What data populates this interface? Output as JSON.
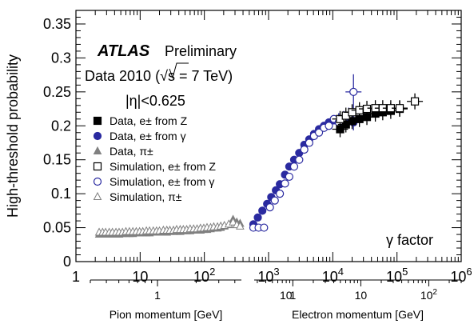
{
  "chart_data": {
    "type": "scatter",
    "ylabel": "High-threshold probability",
    "ylim": [
      0,
      0.37
    ],
    "yticks": [
      "0",
      "0.05",
      "0.1",
      "0.15",
      "0.2",
      "0.25",
      "0.3",
      "0.35"
    ],
    "xscale": "log",
    "xlim": [
      1,
      1000000
    ],
    "xticks": [
      {
        "v": 1,
        "b": "1",
        "e": ""
      },
      {
        "v": 10,
        "b": "10",
        "e": ""
      },
      {
        "v": 100,
        "b": "10",
        "e": "2"
      },
      {
        "v": 1000,
        "b": "10",
        "e": "3"
      },
      {
        "v": 10000,
        "b": "10",
        "e": "4"
      },
      {
        "v": 100000,
        "b": "10",
        "e": "5"
      },
      {
        "v": 1000000,
        "b": "10",
        "e": "6"
      }
    ],
    "annotation": "γ factor",
    "atlas_label": "ATLAS",
    "preliminary_label": "Preliminary",
    "data_label_pre": "Data 2010 (",
    "sqrt_label": "√s",
    "data_label_post": " = 7 TeV)",
    "eta_label": "|η|<0.625",
    "legend_position": "left",
    "legend": [
      {
        "marker": "square-filled",
        "label": "Data, e± from Z"
      },
      {
        "marker": "circle-filled",
        "label": "Data, e± from γ"
      },
      {
        "marker": "triangle-filled",
        "label": "Data, π±"
      },
      {
        "marker": "square-open",
        "label": "Simulation, e± from Z"
      },
      {
        "marker": "circle-open",
        "label": "Simulation, e± from γ"
      },
      {
        "marker": "triangle-open",
        "label": "Simulation, π±"
      }
    ],
    "secondary_axes": [
      {
        "title": "Pion momentum [GeV]",
        "xlim": [
          0.3,
          4.5
        ],
        "ticks": [
          {
            "v": 1,
            "label": "1"
          },
          {
            "v": 10,
            "label": "10"
          }
        ]
      },
      {
        "title": "Electron momentum [GeV]",
        "xlim": [
          0.27,
          300
        ],
        "ticks": [
          {
            "v": 1,
            "label": "1"
          },
          {
            "v": 10,
            "label": "10"
          },
          {
            "v": 100,
            "label": "10",
            "sup": "2"
          }
        ]
      }
    ],
    "series": [
      {
        "marker": "triangle-filled",
        "color": "#808080",
        "points": [
          [
            2.3,
            0.04
          ],
          [
            2.6,
            0.04
          ],
          [
            2.9,
            0.04
          ],
          [
            3.3,
            0.041
          ],
          [
            3.7,
            0.04
          ],
          [
            4.2,
            0.041
          ],
          [
            4.7,
            0.04
          ],
          [
            5.3,
            0.041
          ],
          [
            6.0,
            0.041
          ],
          [
            6.8,
            0.041
          ],
          [
            7.7,
            0.041
          ],
          [
            8.7,
            0.042
          ],
          [
            9.8,
            0.042
          ],
          [
            11,
            0.042
          ],
          [
            12.5,
            0.042
          ],
          [
            14,
            0.042
          ],
          [
            16,
            0.043
          ],
          [
            18,
            0.043
          ],
          [
            20,
            0.043
          ],
          [
            23,
            0.043
          ],
          [
            26,
            0.043
          ],
          [
            29,
            0.044
          ],
          [
            33,
            0.044
          ],
          [
            37,
            0.044
          ],
          [
            42,
            0.044
          ],
          [
            47,
            0.045
          ],
          [
            53,
            0.045
          ],
          [
            60,
            0.045
          ],
          [
            68,
            0.046
          ],
          [
            77,
            0.046
          ],
          [
            87,
            0.046
          ],
          [
            98,
            0.047
          ],
          [
            110,
            0.047
          ],
          [
            125,
            0.048
          ],
          [
            140,
            0.049
          ],
          [
            160,
            0.049
          ],
          [
            180,
            0.05
          ],
          [
            205,
            0.052
          ],
          [
            240,
            0.054
          ],
          [
            280,
            0.062
          ],
          [
            320,
            0.058
          ],
          [
            360,
            0.056
          ]
        ]
      },
      {
        "marker": "triangle-open",
        "color": "#808080",
        "points": [
          [
            2.3,
            0.043
          ],
          [
            2.6,
            0.043
          ],
          [
            2.9,
            0.043
          ],
          [
            3.3,
            0.043
          ],
          [
            3.7,
            0.043
          ],
          [
            4.2,
            0.043
          ],
          [
            4.7,
            0.043
          ],
          [
            5.3,
            0.043
          ],
          [
            6.0,
            0.044
          ],
          [
            6.8,
            0.044
          ],
          [
            7.7,
            0.044
          ],
          [
            8.7,
            0.044
          ],
          [
            9.8,
            0.044
          ],
          [
            11,
            0.044
          ],
          [
            12.5,
            0.045
          ],
          [
            14,
            0.045
          ],
          [
            16,
            0.045
          ],
          [
            18,
            0.045
          ],
          [
            20,
            0.045
          ],
          [
            23,
            0.046
          ],
          [
            26,
            0.046
          ],
          [
            29,
            0.046
          ],
          [
            33,
            0.046
          ],
          [
            37,
            0.047
          ],
          [
            42,
            0.047
          ],
          [
            47,
            0.047
          ],
          [
            53,
            0.047
          ],
          [
            60,
            0.048
          ],
          [
            68,
            0.048
          ],
          [
            77,
            0.048
          ],
          [
            87,
            0.049
          ],
          [
            98,
            0.049
          ],
          [
            110,
            0.05
          ],
          [
            125,
            0.05
          ],
          [
            140,
            0.051
          ],
          [
            160,
            0.051
          ],
          [
            180,
            0.052
          ],
          [
            205,
            0.053
          ],
          [
            240,
            0.055
          ],
          [
            280,
            0.058
          ],
          [
            320,
            0.054
          ],
          [
            360,
            0.052
          ]
        ]
      },
      {
        "marker": "circle-filled",
        "color": "#2a2aa0",
        "points": [
          [
            580,
            0.055
          ],
          [
            680,
            0.065
          ],
          [
            800,
            0.075
          ],
          [
            950,
            0.085
          ],
          [
            1100,
            0.095
          ],
          [
            1300,
            0.105
          ],
          [
            1500,
            0.114
          ],
          [
            1800,
            0.128
          ],
          [
            2100,
            0.14
          ],
          [
            2500,
            0.15
          ],
          [
            3000,
            0.16
          ],
          [
            3600,
            0.172
          ],
          [
            4300,
            0.18
          ],
          [
            5100,
            0.188
          ],
          [
            6100,
            0.195
          ],
          [
            7300,
            0.2
          ],
          [
            8700,
            0.205
          ],
          [
            10400,
            0.208
          ],
          [
            12400,
            0.207
          ],
          [
            14800,
            0.205
          ],
          [
            17700,
            0.208
          ],
          [
            21000,
            0.205
          ]
        ]
      },
      {
        "marker": "circle-open",
        "color": "#2a2aa0",
        "points": [
          [
            580,
            0.05
          ],
          [
            700,
            0.05
          ],
          [
            850,
            0.05
          ],
          [
            1050,
            0.08
          ],
          [
            1250,
            0.09
          ],
          [
            1500,
            0.1
          ],
          [
            1800,
            0.115
          ],
          [
            2100,
            0.125
          ],
          [
            2500,
            0.14
          ],
          [
            3000,
            0.15
          ],
          [
            3600,
            0.165
          ],
          [
            4300,
            0.175
          ],
          [
            5100,
            0.185
          ],
          [
            6100,
            0.19
          ],
          [
            7300,
            0.197
          ],
          [
            8700,
            0.2
          ],
          [
            10400,
            0.21
          ],
          [
            12400,
            0.205
          ],
          [
            14800,
            0.21
          ],
          [
            17700,
            0.215
          ],
          [
            21000,
            0.25
          ]
        ]
      },
      {
        "marker": "square-filled",
        "color": "#000000",
        "points": [
          [
            13000,
            0.195
          ],
          [
            16000,
            0.202
          ],
          [
            20000,
            0.207
          ],
          [
            26000,
            0.21
          ],
          [
            34000,
            0.213
          ],
          [
            46000,
            0.218
          ],
          [
            60000,
            0.22
          ],
          [
            80000,
            0.222
          ],
          [
            110000,
            0.225
          ]
        ]
      },
      {
        "marker": "square-open",
        "color": "#000000",
        "points": [
          [
            13000,
            0.21
          ],
          [
            16000,
            0.215
          ],
          [
            20000,
            0.22
          ],
          [
            26000,
            0.223
          ],
          [
            34000,
            0.225
          ],
          [
            46000,
            0.226
          ],
          [
            60000,
            0.226
          ],
          [
            80000,
            0.226
          ],
          [
            110000,
            0.226
          ],
          [
            190000,
            0.236
          ]
        ]
      }
    ]
  }
}
